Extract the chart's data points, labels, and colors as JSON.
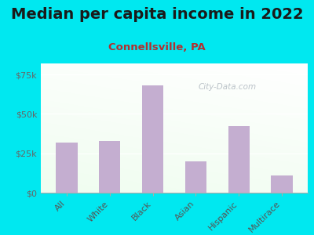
{
  "title": "Median per capita income in 2022",
  "subtitle": "Connellsville, PA",
  "categories": [
    "All",
    "White",
    "Black",
    "Asian",
    "Hispanic",
    "Multirace"
  ],
  "values": [
    32000,
    33000,
    68000,
    20000,
    42000,
    11000
  ],
  "bar_color": "#c4aed0",
  "background_outer": "#00e8f0",
  "title_color": "#1a1a1a",
  "subtitle_color": "#b03030",
  "tick_label_color": "#555555",
  "ytick_color": "#666666",
  "ylabel_ticks": [
    0,
    25000,
    50000,
    75000
  ],
  "watermark": "City-Data.com",
  "ylim": [
    0,
    82000
  ],
  "title_fontsize": 14,
  "subtitle_fontsize": 9.5
}
